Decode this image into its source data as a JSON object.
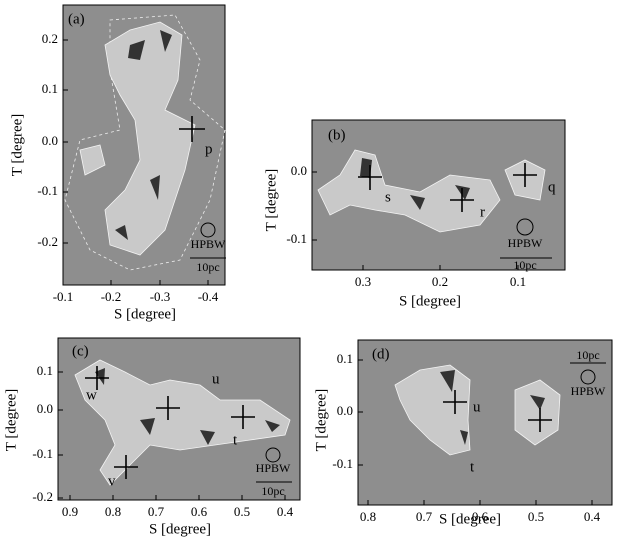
{
  "panels": [
    {
      "label": "(a)",
      "xticks": [
        "-0.1",
        "-0.2",
        "-0.3",
        "-0.4"
      ],
      "yticks": [
        "0.2",
        "0.1",
        "0.0",
        "-0.1",
        "-0.2"
      ],
      "xlabel": "S [degree]",
      "ylabel": "T [degree]",
      "annotations": [
        "p"
      ],
      "hpbw": "HPBW",
      "scalebar": "10pc"
    },
    {
      "label": "(b)",
      "xticks": [
        "0.3",
        "0.2",
        "0.1"
      ],
      "yticks": [
        "0.0",
        "-0.1"
      ],
      "xlabel": "S [degree]",
      "ylabel": "T [degree]",
      "annotations": [
        "s",
        "r",
        "q"
      ],
      "hpbw": "HPBW",
      "scalebar": "10pc"
    },
    {
      "label": "(c)",
      "xticks": [
        "0.9",
        "0.8",
        "0.7",
        "0.6",
        "0.5",
        "0.4"
      ],
      "yticks": [
        "0.1",
        "0.0",
        "-0.1",
        "-0.2"
      ],
      "xlabel": "S [degree]",
      "ylabel": "T [degree]",
      "annotations": [
        "w",
        "u",
        "t",
        "v"
      ],
      "hpbw": "HPBW",
      "scalebar": "10pc"
    },
    {
      "label": "(d)",
      "xticks": [
        "0.8",
        "0.7",
        "0.6",
        "0.5",
        "0.4"
      ],
      "yticks": [
        "0.1",
        "0.0",
        "-0.1"
      ],
      "xlabel": "S [degree]",
      "ylabel": "T [degree]",
      "annotations": [
        "u",
        "t"
      ],
      "hpbw": "HPBW",
      "scalebar": "10pc"
    }
  ]
}
